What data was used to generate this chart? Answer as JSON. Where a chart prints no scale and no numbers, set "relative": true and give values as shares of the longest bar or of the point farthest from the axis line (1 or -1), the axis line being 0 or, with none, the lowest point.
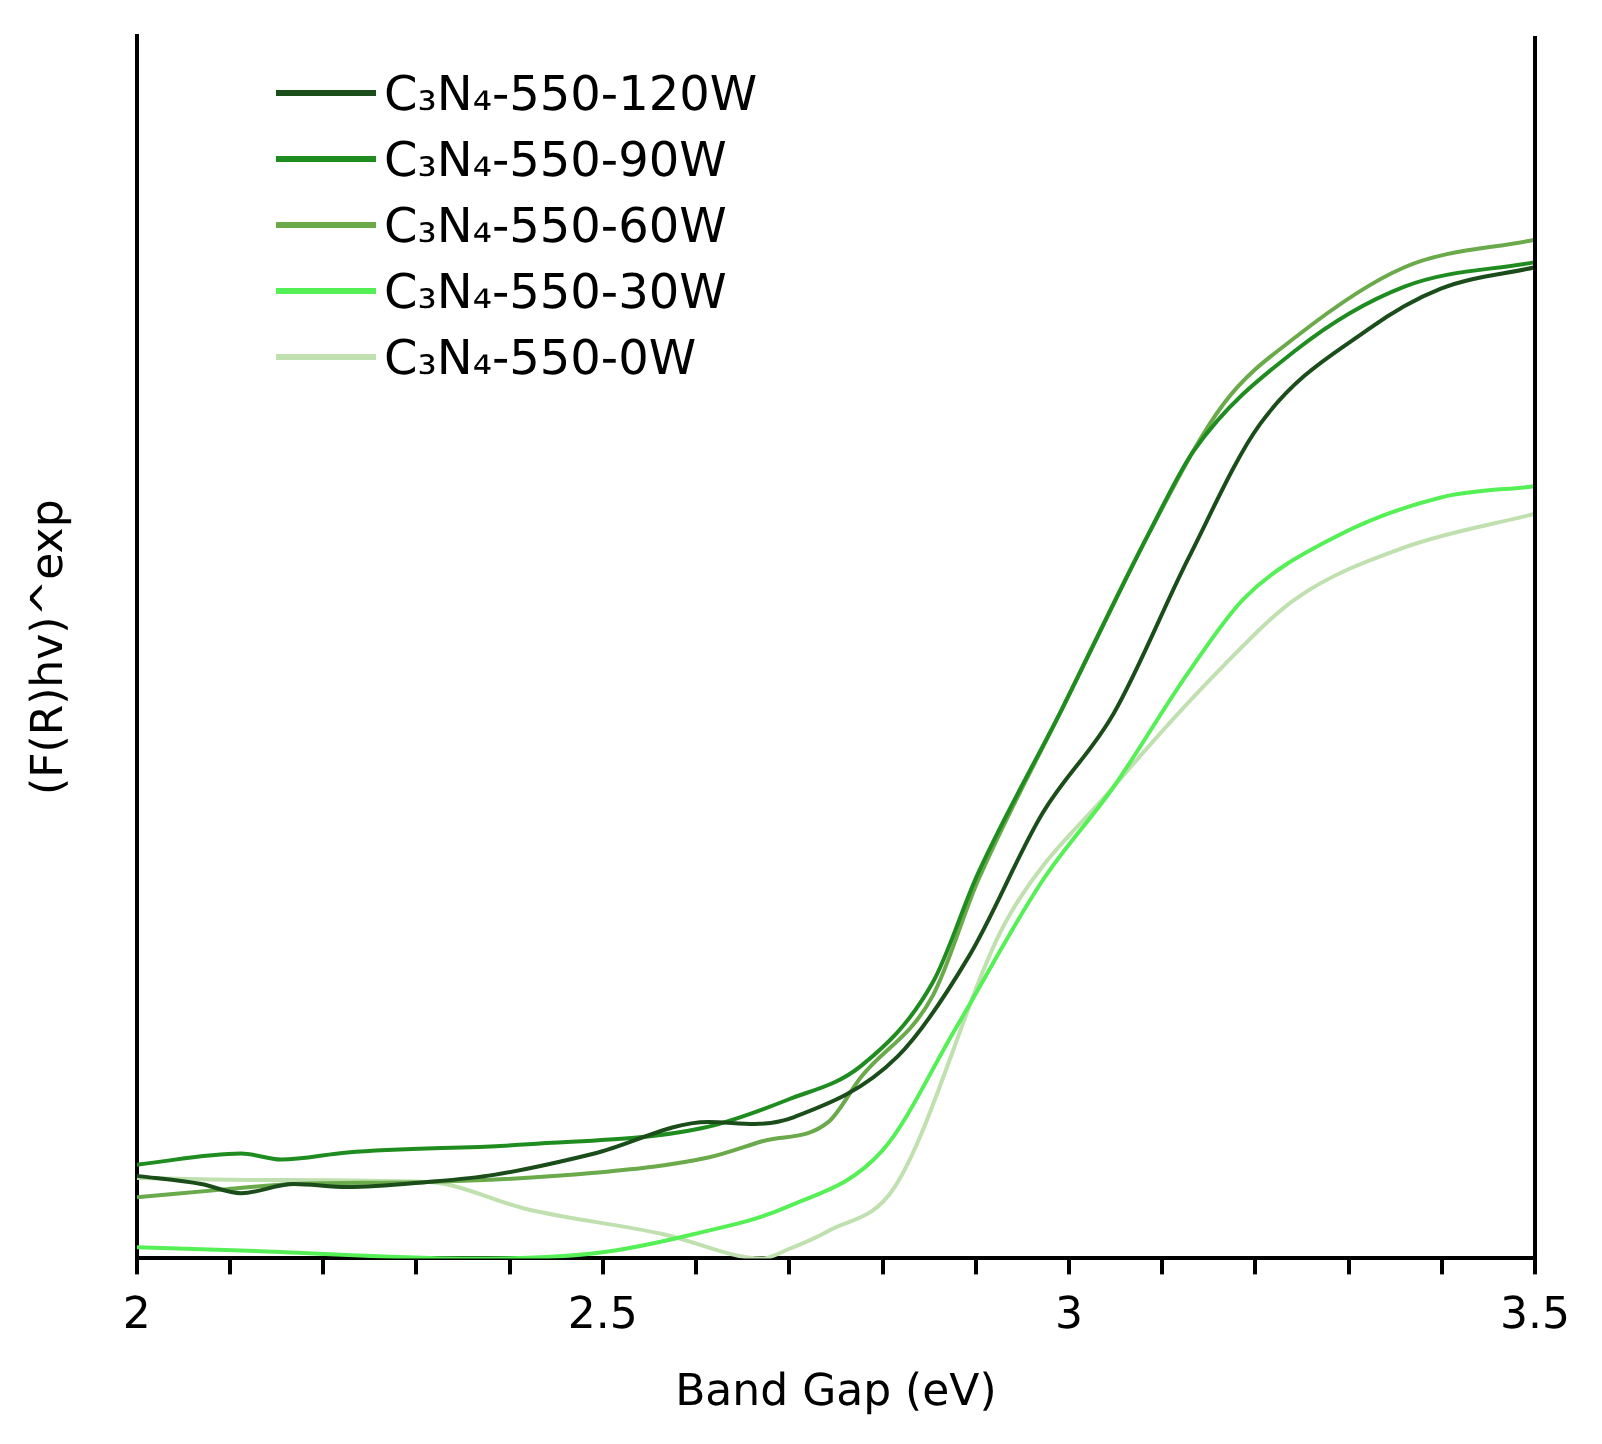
{
  "chart_data": {
    "type": "line",
    "xlabel": "Band Gap (eV)",
    "ylabel": "(F(R)hv)^exp",
    "relative": true,
    "xlim": [
      2,
      3.5
    ],
    "xticks": [
      2,
      {
        "value": 2.1,
        "label": null
      },
      {
        "value": 2.2,
        "label": null
      },
      {
        "value": 2.3,
        "label": null
      },
      {
        "value": 2.4,
        "label": null
      },
      2.5,
      {
        "value": 2.6,
        "label": null
      },
      {
        "value": 2.7,
        "label": null
      },
      {
        "value": 2.8,
        "label": null
      },
      {
        "value": 2.9,
        "label": null
      },
      3,
      {
        "value": 3.1,
        "label": null
      },
      {
        "value": 3.2,
        "label": null
      },
      {
        "value": 3.3,
        "label": null
      },
      {
        "value": 3.4,
        "label": null
      },
      3.5
    ],
    "legend": "top left",
    "grid": false,
    "marker": "none",
    "line_style": "solid",
    "series": [
      {
        "name": "C₃N₄-550-120W",
        "color": "#1a4d1a",
        "x": [
          2.0,
          2.069,
          2.112,
          2.168,
          2.226,
          2.312,
          2.383,
          2.491,
          2.613,
          2.663,
          2.706,
          2.816,
          2.893,
          2.971,
          3.048,
          3.128,
          3.205,
          3.321,
          3.399,
          3.5
        ],
        "values": [
          0.081,
          0.073,
          0.064,
          0.073,
          0.07,
          0.075,
          0.082,
          0.103,
          0.134,
          0.132,
          0.139,
          0.198,
          0.297,
          0.436,
          0.535,
          0.687,
          0.819,
          0.912,
          0.952,
          0.973
        ]
      },
      {
        "name": "C₃N₄-550-90W",
        "color": "#1e8c1e",
        "x": [
          2.0,
          2.112,
          2.155,
          2.226,
          2.42,
          2.607,
          2.699,
          2.777,
          2.854,
          2.902,
          2.994,
          3.087,
          3.134,
          3.244,
          3.36,
          3.5
        ],
        "values": [
          0.092,
          0.103,
          0.097,
          0.104,
          0.112,
          0.128,
          0.156,
          0.189,
          0.271,
          0.377,
          0.542,
          0.714,
          0.793,
          0.892,
          0.954,
          0.978
        ]
      },
      {
        "name": "C₃N₄-550-60W",
        "color": "#6aaa4a",
        "x": [
          2.0,
          2.097,
          2.168,
          2.312,
          2.491,
          2.613,
          2.671,
          2.742,
          2.777,
          2.854,
          2.902,
          2.994,
          3.087,
          3.166,
          3.244,
          3.36,
          3.5
        ],
        "values": [
          0.06,
          0.068,
          0.073,
          0.075,
          0.084,
          0.099,
          0.115,
          0.134,
          0.178,
          0.258,
          0.37,
          0.542,
          0.714,
          0.839,
          0.905,
          0.973,
          1.0
        ]
      },
      {
        "name": "C₃N₄-550-30W",
        "color": "#55f055",
        "x": [
          2.0,
          2.133,
          2.349,
          2.491,
          2.598,
          2.699,
          2.8,
          2.878,
          2.971,
          3.048,
          3.128,
          3.188,
          3.283,
          3.399,
          3.5
        ],
        "values": [
          0.011,
          0.007,
          0.0,
          0.005,
          0.024,
          0.051,
          0.106,
          0.225,
          0.37,
          0.463,
          0.575,
          0.648,
          0.707,
          0.747,
          0.758
        ]
      },
      {
        "name": "C₃N₄-550-0W",
        "color": "#c0e0b0",
        "x": [
          2.0,
          2.133,
          2.312,
          2.42,
          2.564,
          2.671,
          2.699,
          2.742,
          2.813,
          2.932,
          3.048,
          3.166,
          3.244,
          3.36,
          3.5
        ],
        "values": [
          0.079,
          0.077,
          0.075,
          0.048,
          0.024,
          0.0,
          0.009,
          0.027,
          0.07,
          0.33,
          0.463,
          0.582,
          0.648,
          0.698,
          0.731
        ]
      }
    ]
  }
}
